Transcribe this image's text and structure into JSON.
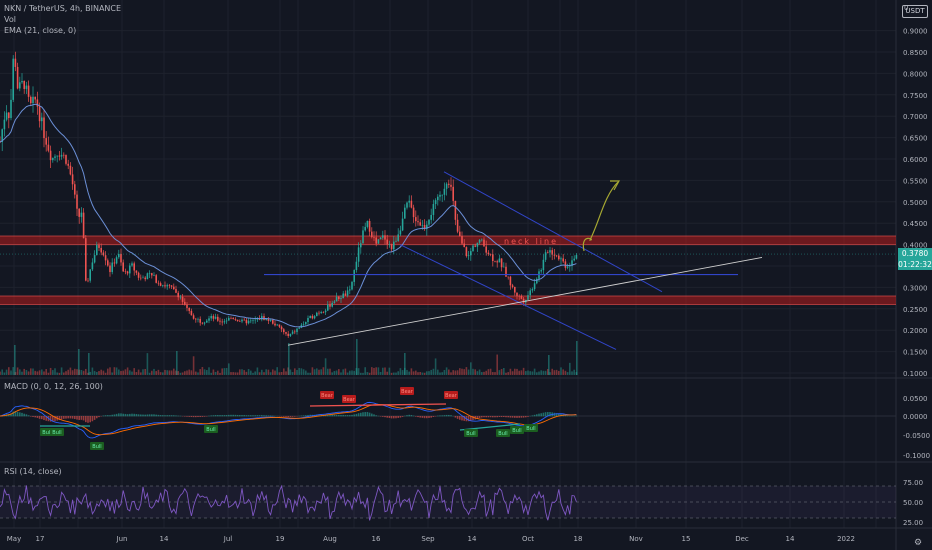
{
  "header": {
    "symbol_line": "NKN / TetherUS, 4h, BINANCE",
    "vol_label": "Vol",
    "ema_label": "EMA (21, close, 0)",
    "macd_label": "MACD (0, 0, 12, 26, 100)",
    "rsi_label": "RSI (14, close)",
    "currency_badge": "USDT"
  },
  "price_axis": {
    "ticks": [
      "0.9000",
      "0.8500",
      "0.8000",
      "0.7500",
      "0.7000",
      "0.6500",
      "0.6000",
      "0.5500",
      "0.5000",
      "0.4500",
      "0.4000",
      "0.3500",
      "0.3000",
      "0.2500",
      "0.2000",
      "0.1500",
      "0.1000"
    ],
    "current_price": "0.3780",
    "countdown": "01:22:32",
    "top_clipped": "0"
  },
  "macd_axis": {
    "ticks": [
      "0.0500",
      "0.0000",
      "-0.0500",
      "-0.1000"
    ]
  },
  "rsi_axis": {
    "ticks": [
      "75.00",
      "50.00",
      "25.00"
    ]
  },
  "time_axis": {
    "ticks": [
      "May",
      "17",
      "Jun",
      "14",
      "Jul",
      "19",
      "Aug",
      "16",
      "Sep",
      "14",
      "Oct",
      "18",
      "Nov",
      "15",
      "Dec",
      "14",
      "2022"
    ]
  },
  "annotations": {
    "neck_line": "neck line",
    "macd_labels": [
      "Bull",
      "Bull",
      "Bull",
      "Bull",
      "Bear",
      "Bear",
      "Bear",
      "Bear",
      "Bull",
      "Bull",
      "Bull",
      "Bull"
    ]
  },
  "colors": {
    "background": "#131722",
    "up_candle": "#26a69a",
    "down_candle": "#ef5350",
    "ema": "#6b8fd6",
    "trendline": "#3145c9",
    "support": "#d0d0d0",
    "zone": "#b71c1c",
    "arrow": "#a6a832",
    "rsi": "#7e57c2",
    "macd_signal": "#ff6d00"
  },
  "chart_data": {
    "type": "candlestick",
    "symbol": "NKN / TetherUS",
    "interval": "4h",
    "exchange": "BINANCE",
    "y_axis_range": [
      0.1,
      0.9
    ],
    "approx_price_path": [
      {
        "x": "May",
        "price": 0.66
      },
      {
        "x": "early May",
        "price": 0.86
      },
      {
        "x": "17",
        "price": 0.58
      },
      {
        "x": "late May",
        "price": 0.36
      },
      {
        "x": "Jun",
        "price": 0.34
      },
      {
        "x": "14",
        "price": 0.24
      },
      {
        "x": "Jul",
        "price": 0.21
      },
      {
        "x": "19",
        "price": 0.18
      },
      {
        "x": "Aug",
        "price": 0.24
      },
      {
        "x": "mid Aug",
        "price": 0.44
      },
      {
        "x": "16",
        "price": 0.44
      },
      {
        "x": "Sep",
        "price": 0.55
      },
      {
        "x": "early Sep",
        "price": 0.56
      },
      {
        "x": "mid Sep",
        "price": 0.37
      },
      {
        "x": "14",
        "price": 0.4
      },
      {
        "x": "late Sep",
        "price": 0.3
      },
      {
        "x": "Oct",
        "price": 0.28
      },
      {
        "x": "early Oct",
        "price": 0.39
      },
      {
        "x": "mid Oct",
        "price": 0.35
      },
      {
        "x": "18",
        "price": 0.378
      }
    ],
    "resistance_zones": [
      [
        0.4,
        0.42
      ],
      [
        0.26,
        0.28
      ]
    ],
    "horizontal_line": 0.33,
    "current_price": 0.378,
    "rsi_range": [
      25,
      75
    ],
    "macd_range": [
      -0.1,
      0.05
    ]
  }
}
